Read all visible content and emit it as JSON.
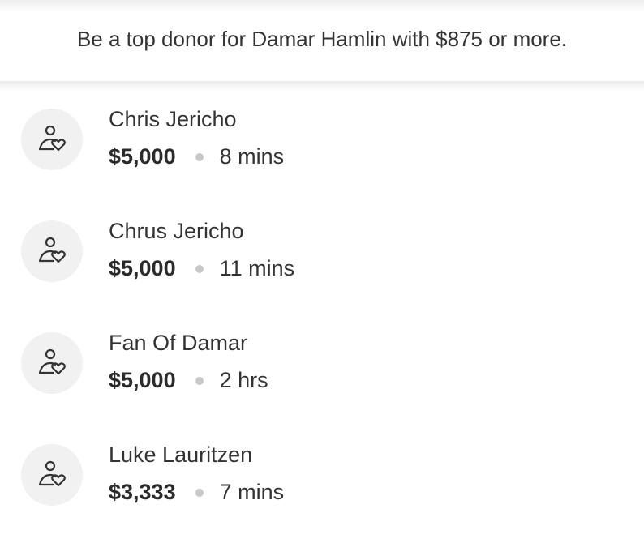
{
  "banner": {
    "text": "Be a top donor for Damar Hamlin with $875 or more."
  },
  "donors": [
    {
      "name": "Chris Jericho",
      "amount": "$5,000",
      "time": "8 mins",
      "icon": "donor-heart-icon"
    },
    {
      "name": "Chrus Jericho",
      "amount": "$5,000",
      "time": "11 mins",
      "icon": "donor-heart-icon"
    },
    {
      "name": "Fan Of Damar",
      "amount": "$5,000",
      "time": "2 hrs",
      "icon": "donor-heart-icon"
    },
    {
      "name": "Luke Lauritzen",
      "amount": "$3,333",
      "time": "7 mins",
      "icon": "donor-heart-icon"
    }
  ]
}
